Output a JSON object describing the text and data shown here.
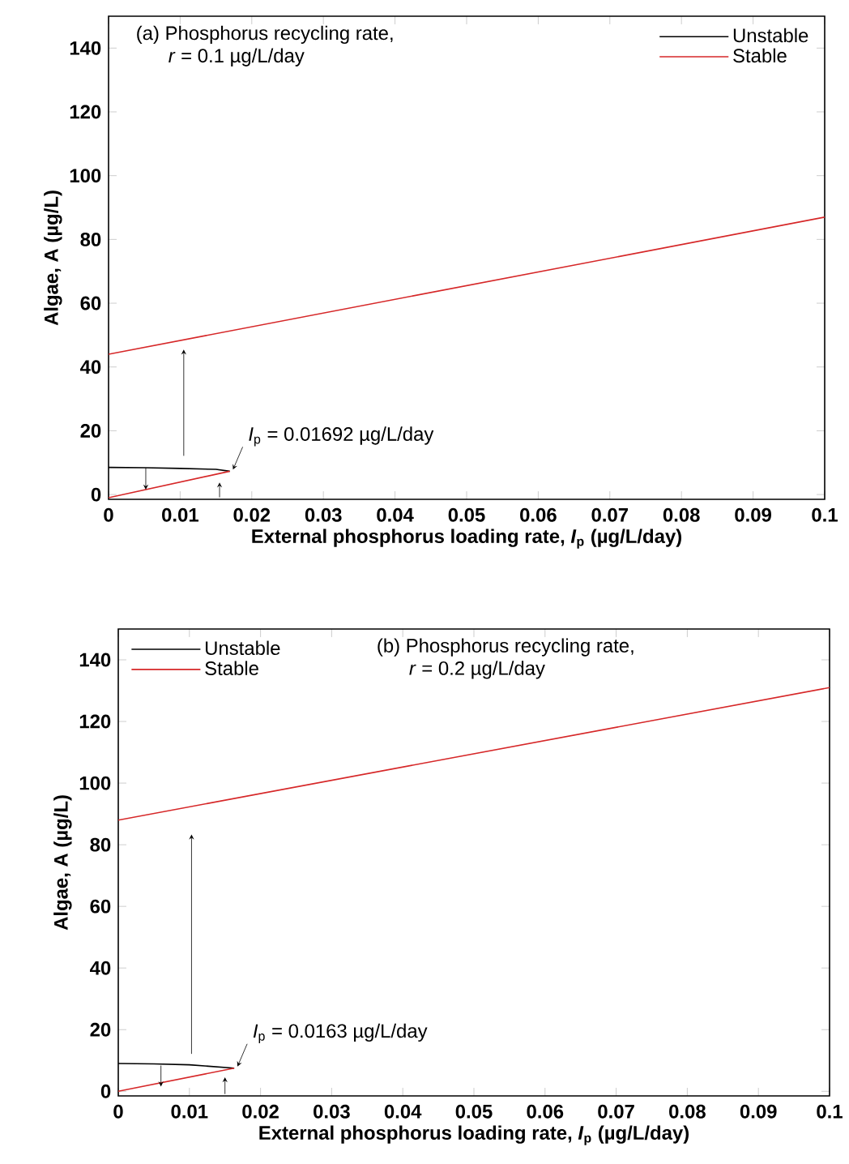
{
  "chart_data": [
    {
      "type": "line",
      "title": "(a) Phosphorus recycling rate,",
      "subtitle": "*r* = 0.1 µg/L/day",
      "xlabel": "External phosphorus loading rate, *I*$_{p}$ (µg/L/day)",
      "ylabel": "Algae, A (µg/L)",
      "series": [
        {
          "name": "Unstable",
          "color": "#000000",
          "x": [
            0,
            0.005,
            0.01,
            0.015,
            0.01692
          ],
          "values": [
            8.5,
            8.4,
            8.2,
            7.9,
            7.3
          ]
        },
        {
          "name": "Stable",
          "color": "#d62728",
          "x": [
            0,
            0.01692
          ],
          "values": [
            -1,
            7.3
          ]
        },
        {
          "color": "#d62728",
          "x": [
            0,
            0.1
          ],
          "values": [
            44,
            87
          ]
        }
      ],
      "annotations": [
        {
          "text": "*I*$_{p}$ = 0.01692 µg/L/day",
          "x": 0.01692,
          "y": 7.3
        }
      ],
      "xlim": [
        0,
        0.1
      ],
      "ylim": [
        -1.5,
        150
      ],
      "xticks": [
        0,
        0.01,
        0.02,
        0.03,
        0.04,
        0.05,
        0.06,
        0.07,
        0.08,
        0.09,
        0.1
      ],
      "yticks": [
        0,
        20,
        40,
        60,
        80,
        100,
        120,
        140
      ],
      "legend": "top right",
      "marker": "none",
      "line_style": "solid"
    },
    {
      "type": "line",
      "title": "(b) Phosphorus recycling rate,",
      "subtitle": "*r* = 0.2 µg/L/day",
      "xlabel": "External phosphorus loading rate, *I*$_{p}$ (µg/L/day)",
      "ylabel": "Algae, A (µg/L)",
      "series": [
        {
          "name": "Unstable",
          "color": "#000000",
          "x": [
            0,
            0.005,
            0.01,
            0.0163
          ],
          "values": [
            9,
            8.9,
            8.6,
            7.5
          ]
        },
        {
          "name": "Stable",
          "color": "#d62728",
          "x": [
            0,
            0.0163
          ],
          "values": [
            0,
            7.5
          ]
        },
        {
          "color": "#d62728",
          "x": [
            0,
            0.1
          ],
          "values": [
            88,
            131
          ]
        }
      ],
      "annotations": [
        {
          "text": "*I*$_{p}$ = 0.0163 µg/L/day",
          "x": 0.0163,
          "y": 7.5
        }
      ],
      "xlim": [
        0,
        0.1
      ],
      "ylim": [
        -1.5,
        150
      ],
      "xticks": [
        0,
        0.01,
        0.02,
        0.03,
        0.04,
        0.05,
        0.06,
        0.07,
        0.08,
        0.09,
        0.1
      ],
      "yticks": [
        0,
        20,
        40,
        60,
        80,
        100,
        120,
        140
      ],
      "legend": "top left",
      "marker": "none",
      "line_style": "solid"
    }
  ]
}
